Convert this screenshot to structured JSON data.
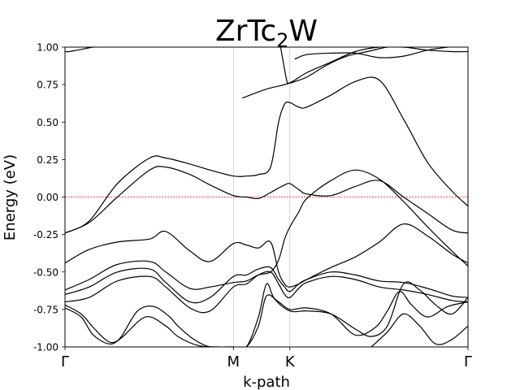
{
  "chart_data": {
    "type": "line",
    "title_main": "ZrTc",
    "title_sub": "2",
    "title_tail": "W",
    "xlabel": "k-path",
    "ylabel": "Energy (eV)",
    "xlim": [
      0,
      1
    ],
    "ylim": [
      -1.0,
      1.0
    ],
    "yticks": [
      "-1.00",
      "-0.75",
      "-0.50",
      "-0.25",
      "0.00",
      "0.25",
      "0.50",
      "0.75",
      "1.00"
    ],
    "ytick_values": [
      -1.0,
      -0.75,
      -0.5,
      -0.25,
      0.0,
      0.25,
      0.5,
      0.75,
      1.0
    ],
    "kpoints": [
      {
        "label": "Γ",
        "x": 0.0
      },
      {
        "label": "M",
        "x": 0.418
      },
      {
        "label": "K",
        "x": 0.558
      },
      {
        "label": "Γ",
        "x": 1.0
      }
    ],
    "fermi_level": 0.0,
    "colors": {
      "bands": "#000000",
      "fermi": "#ff0000",
      "kline": "#cccccc"
    },
    "bands": [
      {
        "x": [
          0,
          0.06,
          0.13,
          0.21,
          0.25,
          0.31,
          0.36,
          0.418,
          0.45,
          0.48,
          0.51,
          0.53,
          0.545,
          0.558,
          0.58,
          0.6,
          0.66,
          0.72,
          0.78,
          0.84,
          0.9,
          0.96,
          1.0
        ],
        "y": [
          -0.24,
          -0.17,
          0.0,
          0.18,
          0.2,
          0.15,
          0.08,
          0.01,
          0.0,
          -0.01,
          0.03,
          0.06,
          0.08,
          0.09,
          0.05,
          0.02,
          0.01,
          0.07,
          0.11,
          0.0,
          -0.11,
          -0.22,
          -0.24
        ]
      },
      {
        "x": [
          0,
          0.06,
          0.13,
          0.21,
          0.25,
          0.31,
          0.36,
          0.418,
          0.45,
          0.48,
          0.51,
          0.53,
          0.545,
          0.558,
          0.58,
          0.6,
          0.66,
          0.72,
          0.78,
          0.84,
          0.9,
          0.96,
          1.0
        ],
        "y": [
          -0.24,
          -0.16,
          0.09,
          0.26,
          0.26,
          0.22,
          0.18,
          0.14,
          0.14,
          0.15,
          0.2,
          0.5,
          0.62,
          0.63,
          0.6,
          0.6,
          0.68,
          0.77,
          0.78,
          0.52,
          0.23,
          0.04,
          -0.06
        ]
      },
      {
        "x": [
          0,
          0.06,
          0.13,
          0.21,
          0.25,
          0.31,
          0.36,
          0.418,
          0.45,
          0.48,
          0.51,
          0.53,
          0.545,
          0.558,
          0.58,
          0.6,
          0.66,
          0.72,
          0.78,
          0.84,
          0.9,
          0.96,
          1.0
        ],
        "y": [
          -0.44,
          -0.35,
          -0.3,
          -0.28,
          -0.23,
          -0.36,
          -0.43,
          -0.31,
          -0.32,
          -0.34,
          -0.3,
          -0.5,
          -0.58,
          -0.6,
          -0.58,
          -0.55,
          -0.47,
          -0.4,
          -0.3,
          -0.18,
          -0.26,
          -0.38,
          -0.44
        ]
      },
      {
        "x": [
          0,
          0.06,
          0.13,
          0.21,
          0.25,
          0.31,
          0.36,
          0.418,
          0.45,
          0.48,
          0.51,
          0.53,
          0.545,
          0.558,
          0.58,
          0.6,
          0.66,
          0.72,
          0.78,
          0.84,
          0.9,
          0.96,
          1.0
        ],
        "y": [
          -0.62,
          -0.55,
          -0.45,
          -0.43,
          -0.5,
          -0.61,
          -0.6,
          -0.57,
          -0.56,
          -0.52,
          -0.5,
          -0.42,
          -0.28,
          -0.2,
          -0.1,
          -0.01,
          0.11,
          0.18,
          0.12,
          -0.03,
          -0.2,
          -0.36,
          -0.46
        ]
      },
      {
        "x": [
          0,
          0.06,
          0.13,
          0.21,
          0.25,
          0.31,
          0.36,
          0.418,
          0.45,
          0.48,
          0.51,
          0.53,
          0.545,
          0.558,
          0.58,
          0.6,
          0.66,
          0.72,
          0.78,
          0.84,
          0.9,
          0.96,
          1.0
        ],
        "y": [
          -0.65,
          -0.6,
          -0.5,
          -0.48,
          -0.57,
          -0.7,
          -0.67,
          -0.53,
          -0.52,
          -0.48,
          -0.47,
          -0.55,
          -0.6,
          -0.63,
          -0.58,
          -0.55,
          -0.5,
          -0.52,
          -0.56,
          -0.57,
          -0.61,
          -0.66,
          -0.67
        ]
      },
      {
        "x": [
          0,
          0.06,
          0.13,
          0.21,
          0.25,
          0.31,
          0.36,
          0.418,
          0.45,
          0.48,
          0.51,
          0.53,
          0.545,
          0.558,
          0.58,
          0.6,
          0.66,
          0.72,
          0.78,
          0.84,
          0.9,
          0.96,
          1.0
        ],
        "y": [
          -0.7,
          -0.67,
          -0.56,
          -0.53,
          -0.6,
          -0.74,
          -0.76,
          -0.6,
          -0.58,
          -0.52,
          -0.5,
          -0.58,
          -0.65,
          -0.67,
          -0.61,
          -0.57,
          -0.53,
          -0.55,
          -0.6,
          -0.62,
          -0.65,
          -0.69,
          -0.7
        ]
      }
    ],
    "band_upper_a": {
      "x": [
        0.44,
        0.5,
        0.556,
        0.6,
        0.66,
        0.72,
        0.78,
        0.84,
        0.9,
        0.96,
        1.0
      ],
      "y": [
        0.66,
        0.72,
        0.76,
        0.83,
        0.9,
        0.97,
        1.0,
        1.0,
        0.98,
        0.97,
        0.97
      ]
    },
    "band_upper_b": {
      "x": [
        0,
        0.01,
        0.03,
        0.05,
        0.07,
        0.09
      ],
      "y": [
        0.97,
        0.97,
        0.98,
        0.99,
        1.0,
        1.0
      ]
    },
    "band_upper_c": {
      "x": [
        0.535,
        0.55,
        0.556,
        0.57,
        0.6,
        0.65,
        0.7,
        0.75,
        0.8,
        0.84
      ],
      "y": [
        1.0,
        0.78,
        0.76,
        0.77,
        0.8,
        0.88,
        0.94,
        0.97,
        1.0,
        1.0
      ]
    },
    "band_upper_d": {
      "x": [
        0.57,
        0.6,
        0.66,
        0.72,
        0.78,
        0.84,
        0.9,
        0.95
      ],
      "y": [
        0.92,
        0.95,
        0.96,
        0.96,
        0.93,
        0.94,
        0.98,
        1.0
      ]
    },
    "band_lower_a": {
      "x": [
        0,
        0.04,
        0.07,
        0.11,
        0.14,
        0.2,
        0.25,
        0.28,
        0.33,
        0.38,
        0.418,
        0.45,
        0.48,
        0.5,
        0.53,
        0.558,
        0.6,
        0.66,
        0.72,
        0.77,
        0.8,
        0.83,
        0.86,
        0.9,
        0.95,
        1.0
      ],
      "y": [
        -0.74,
        -0.8,
        -0.92,
        -0.98,
        -0.94,
        -0.8,
        -0.86,
        -0.93,
        -0.99,
        -1.0,
        -1.0,
        -1.0,
        -0.86,
        -0.66,
        -0.7,
        -0.75,
        -0.74,
        -0.78,
        -0.92,
        -0.87,
        -0.76,
        -0.63,
        -0.72,
        -0.8,
        -0.73,
        -0.7
      ]
    },
    "band_lower_b": {
      "x": [
        0,
        0.04,
        0.07,
        0.1,
        0.12,
        0.14,
        0.18,
        0.22,
        0.26,
        0.28,
        0.32,
        0.36,
        0.4,
        0.418,
        0.45,
        0.48,
        0.5,
        0.52,
        0.558,
        0.6,
        0.66,
        0.72,
        0.76,
        0.8,
        0.84,
        0.88,
        0.92,
        0.96,
        1.0
      ],
      "y": [
        -0.72,
        -0.78,
        -0.87,
        -0.95,
        -0.97,
        -0.93,
        -0.76,
        -0.73,
        -0.8,
        -0.86,
        -0.95,
        -1.0,
        -1.0,
        -1.0,
        -1.0,
        -0.8,
        -0.58,
        -0.68,
        -0.76,
        -0.76,
        -0.78,
        -0.88,
        -0.93,
        -0.86,
        -0.58,
        -0.62,
        -0.72,
        -0.78,
        -0.67
      ]
    },
    "band_lower_c": {
      "x": [
        0.76,
        0.8,
        0.84,
        0.88,
        0.92,
        0.96,
        1.0
      ],
      "y": [
        -1.0,
        -0.9,
        -0.78,
        -0.86,
        -0.98,
        -0.95,
        -0.86
      ]
    }
  }
}
